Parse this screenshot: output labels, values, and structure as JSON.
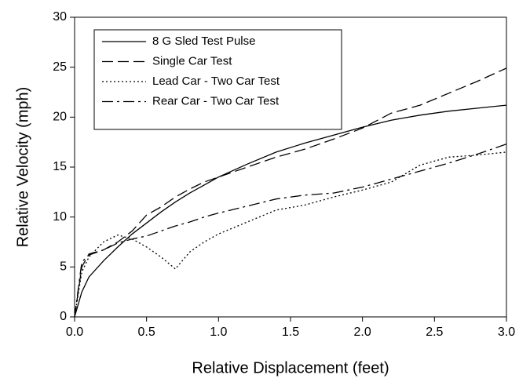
{
  "chart_data": {
    "type": "line",
    "x_label": "Relative Displacement (feet)",
    "y_label": "Relative Velocity (mph)",
    "x": [
      0,
      0.05,
      0.1,
      0.2,
      0.3,
      0.4,
      0.5,
      0.6,
      0.7,
      0.8,
      0.9,
      1.0,
      1.2,
      1.4,
      1.6,
      1.8,
      2.0,
      2.2,
      2.4,
      2.6,
      2.8,
      3.0
    ],
    "series": [
      {
        "name": "8 G Sled Test Pulse",
        "color": "#000000",
        "dash": "solid",
        "values": [
          0,
          2.5,
          4,
          5.6,
          7,
          8.3,
          9.4,
          10.5,
          11.5,
          12.4,
          13.2,
          14,
          15.3,
          16.5,
          17.4,
          18.2,
          19,
          19.7,
          20.2,
          20.6,
          20.9,
          21.2
        ]
      },
      {
        "name": "Single Car Test",
        "color": "#000000",
        "dash": "dashed",
        "values": [
          0,
          5,
          6.3,
          6.7,
          7.5,
          8.6,
          10.2,
          11,
          12,
          12.8,
          13.5,
          14,
          15,
          16,
          16.8,
          17.8,
          18.9,
          20.4,
          21.2,
          22.4,
          23.6,
          24.9
        ]
      },
      {
        "name": "Lead Car - Two Car Test",
        "color": "#000000",
        "dash": "dotted",
        "values": [
          0,
          4.5,
          6,
          7.5,
          8.2,
          7.8,
          7,
          6,
          4.8,
          6.5,
          7.5,
          8.3,
          9.5,
          10.7,
          11.2,
          12,
          12.7,
          13.5,
          15.2,
          16,
          16.2,
          16.5
        ]
      },
      {
        "name": "Rear Car - Two Car Test",
        "color": "#000000",
        "dash": "dashdot",
        "values": [
          0,
          5.5,
          6.2,
          6.7,
          7.4,
          7.8,
          8.1,
          8.6,
          9.1,
          9.5,
          10,
          10.4,
          11.1,
          11.8,
          12.2,
          12.4,
          13,
          13.8,
          14.6,
          15.4,
          16.3,
          17.3
        ]
      }
    ],
    "xlim": [
      0,
      3
    ],
    "ylim": [
      0,
      30
    ],
    "xticks": [
      {
        "value": 0,
        "label": "0.0"
      },
      0.5,
      {
        "value": 1,
        "label": "1.0"
      },
      1.5,
      {
        "value": 2,
        "label": "2.0"
      },
      2.5,
      {
        "value": 3,
        "label": "3.0"
      }
    ],
    "yticks": [
      0,
      5,
      10,
      15,
      20,
      25,
      30
    ],
    "grid": false,
    "legend": "upper left"
  }
}
